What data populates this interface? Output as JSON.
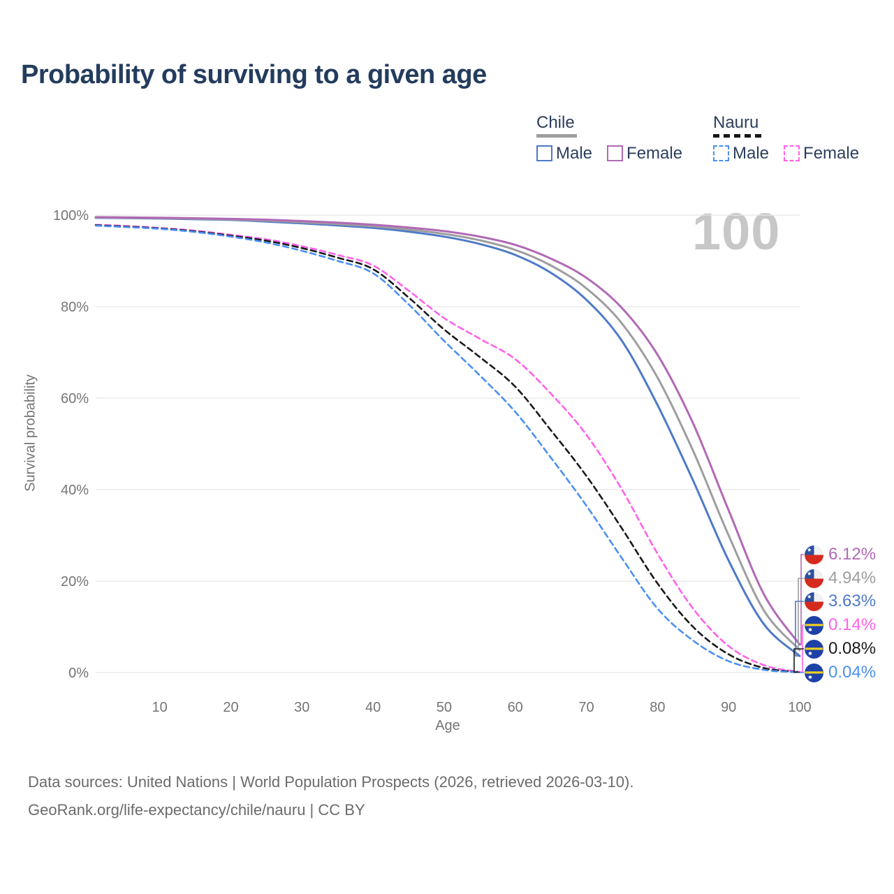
{
  "title": "Probability of surviving to a given age",
  "watermark": "100",
  "legend": {
    "groups": [
      {
        "name": "Chile",
        "line_style": "solid",
        "underline_color": "#9e9e9e",
        "items": [
          {
            "label": "Male",
            "color": "#4e7ac7"
          },
          {
            "label": "Female",
            "color": "#b169b5"
          }
        ]
      },
      {
        "name": "Nauru",
        "line_style": "dashed",
        "underline_color": "#161616",
        "items": [
          {
            "label": "Male",
            "color": "#4a90f2"
          },
          {
            "label": "Female",
            "color": "#ff62e8"
          }
        ]
      }
    ]
  },
  "chart_data": {
    "type": "line",
    "title": "Probability of surviving to a given age",
    "xlabel": "Age",
    "ylabel": "Survival probability",
    "xlim": [
      1,
      100
    ],
    "ylim": [
      0,
      100
    ],
    "x_ticks": [
      10,
      20,
      30,
      40,
      50,
      60,
      70,
      80,
      90,
      100
    ],
    "y_ticks": [
      {
        "v": 0,
        "label": "0%"
      },
      {
        "v": 20,
        "label": "20%"
      },
      {
        "v": 40,
        "label": "40%"
      },
      {
        "v": 60,
        "label": "60%"
      },
      {
        "v": 80,
        "label": "80%"
      },
      {
        "v": 100,
        "label": "100%"
      }
    ],
    "grid": "horizontal",
    "legend_position": "top-right",
    "highlighted_age": 100,
    "ages": [
      1,
      5,
      10,
      15,
      20,
      25,
      30,
      35,
      40,
      45,
      50,
      55,
      60,
      65,
      70,
      75,
      80,
      85,
      90,
      95,
      100
    ],
    "series": [
      {
        "name": "Nauru Female",
        "country": "Nauru",
        "sex": "Female",
        "color": "#ff62e8",
        "dashed": true,
        "end_value": "0.14%",
        "survival_pct": [
          97.9,
          97.65,
          97.2,
          96.6,
          95.7,
          94.7,
          93.2,
          91.3,
          89.0,
          83.5,
          77.5,
          73.0,
          68.5,
          61.0,
          52.0,
          40.0,
          26.0,
          14.0,
          5.8,
          1.6,
          0.14
        ]
      },
      {
        "name": "Nauru Combined",
        "country": "Nauru",
        "sex": "Both",
        "color": "#1a1a1a",
        "dashed": true,
        "end_value": "0.08%",
        "survival_pct": [
          97.8,
          97.5,
          97.1,
          96.45,
          95.5,
          94.4,
          92.8,
          90.7,
          88.2,
          82.0,
          75.0,
          69.0,
          62.5,
          53.0,
          43.0,
          31.5,
          19.5,
          10.0,
          4.0,
          1.0,
          0.08
        ]
      },
      {
        "name": "Nauru Male",
        "country": "Nauru",
        "sex": "Male",
        "color": "#4a90f2",
        "dashed": true,
        "end_value": "0.04%",
        "survival_pct": [
          97.7,
          97.4,
          97.0,
          96.3,
          95.3,
          94.0,
          92.2,
          90.0,
          87.3,
          80.5,
          72.5,
          65.0,
          57.0,
          47.0,
          36.5,
          25.0,
          14.0,
          7.0,
          2.5,
          0.6,
          0.04
        ]
      },
      {
        "name": "Chile Male",
        "country": "Chile",
        "sex": "Male",
        "color": "#4e7ac7",
        "dashed": false,
        "end_value": "3.63%",
        "survival_pct": [
          99.4,
          99.35,
          99.25,
          99.1,
          98.95,
          98.6,
          98.2,
          97.75,
          97.2,
          96.4,
          95.3,
          93.7,
          91.3,
          87.4,
          81.5,
          72.5,
          58.5,
          42.0,
          24.5,
          10.5,
          3.63
        ]
      },
      {
        "name": "Chile Combined",
        "country": "Chile",
        "sex": "Both",
        "color": "#9e9e9e",
        "dashed": false,
        "end_value": "4.94%",
        "survival_pct": [
          99.47,
          99.42,
          99.33,
          99.2,
          99.05,
          98.8,
          98.45,
          98.05,
          97.55,
          96.85,
          95.9,
          94.5,
          92.4,
          89.0,
          84.0,
          76.3,
          64.5,
          48.5,
          30.0,
          13.5,
          4.94
        ]
      },
      {
        "name": "Chile Female",
        "country": "Chile",
        "sex": "Female",
        "color": "#b169b5",
        "dashed": false,
        "end_value": "6.12%",
        "survival_pct": [
          99.55,
          99.5,
          99.42,
          99.32,
          99.18,
          99.0,
          98.7,
          98.35,
          97.9,
          97.3,
          96.5,
          95.3,
          93.5,
          90.5,
          86.3,
          79.7,
          69.5,
          54.5,
          35.5,
          17.0,
          6.12
        ]
      }
    ]
  },
  "end_labels": [
    {
      "flag": "chile",
      "value": "6.12%",
      "color": "#b169b5",
      "series": "Chile Female"
    },
    {
      "flag": "chile",
      "value": "4.94%",
      "color": "#9e9e9e",
      "series": "Chile Combined"
    },
    {
      "flag": "chile",
      "value": "3.63%",
      "color": "#4e7ac7",
      "series": "Chile Male"
    },
    {
      "flag": "nauru",
      "value": "0.14%",
      "color": "#ff62e8",
      "series": "Nauru Female"
    },
    {
      "flag": "nauru",
      "value": "0.08%",
      "color": "#1a1a1a",
      "series": "Nauru Combined"
    },
    {
      "flag": "nauru",
      "value": "0.04%",
      "color": "#4a90f2",
      "series": "Nauru Male"
    }
  ],
  "footer": {
    "line1": "Data sources: United Nations | World Population Prospects (2026, retrieved 2026-03-10).",
    "line2": "GeoRank.org/life-expectancy/chile/nauru | CC BY"
  }
}
